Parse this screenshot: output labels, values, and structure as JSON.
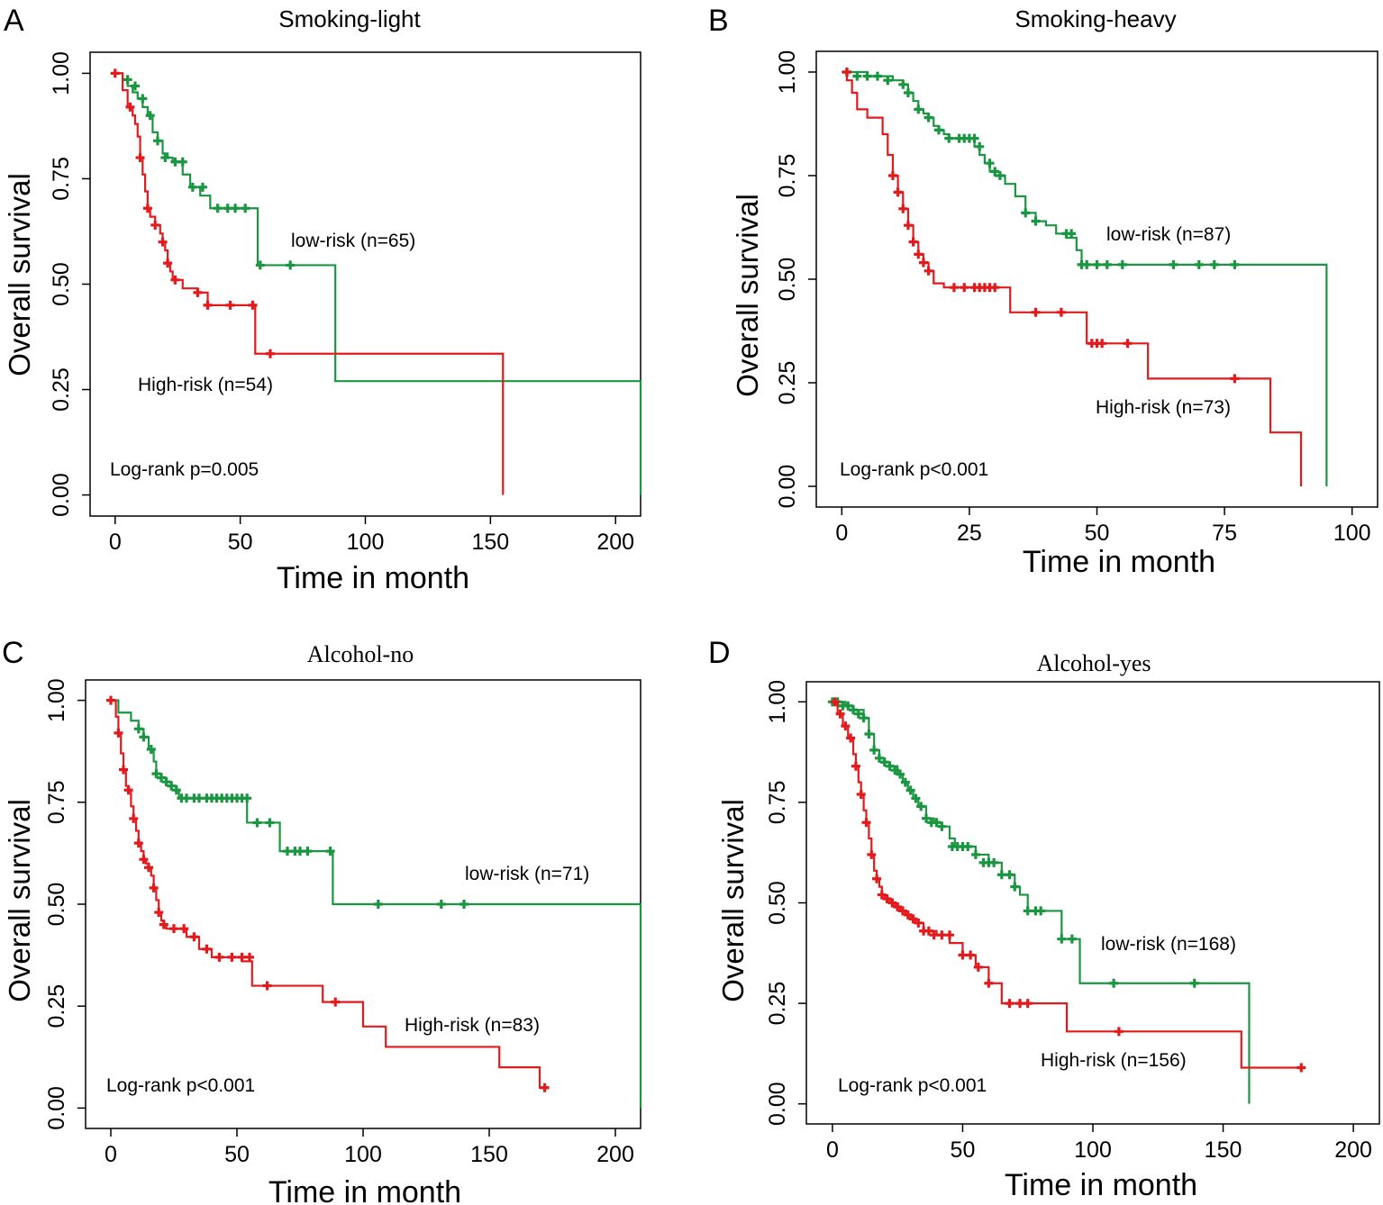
{
  "chart_data": [
    {
      "panel_letter": "A",
      "title": "Smoking-light",
      "type": "line",
      "xlabel": "Time in month",
      "ylabel": "Overall survival",
      "xlim": [
        -10,
        210
      ],
      "ylim": [
        -0.05,
        1.05
      ],
      "x_ticks": [
        "0",
        "50",
        "100",
        "150",
        "200"
      ],
      "x_tick_values": [
        0,
        50,
        100,
        150,
        200
      ],
      "y_ticks": [
        "0.00",
        "0.25",
        "0.50",
        "0.75",
        "1.00"
      ],
      "y_tick_values": [
        0,
        0.25,
        0.5,
        0.75,
        1.0
      ],
      "annotation": "Log-rank p=0.005",
      "series": [
        {
          "name": "low-risk",
          "label": "low-risk (n=65)",
          "color": "#1a9641",
          "x": [
            0,
            3,
            5,
            7,
            9,
            11,
            13,
            15,
            17,
            19,
            21,
            23,
            25,
            27,
            30,
            34,
            38,
            45,
            57,
            88,
            210,
            210
          ],
          "y": [
            1.0,
            0.985,
            0.97,
            0.955,
            0.94,
            0.92,
            0.9,
            0.86,
            0.84,
            0.81,
            0.8,
            0.79,
            0.79,
            0.76,
            0.73,
            0.71,
            0.68,
            0.68,
            0.545,
            0.27,
            0.27,
            0.0
          ],
          "censored_x": [
            5,
            8,
            11,
            14,
            17,
            20,
            24,
            27,
            31,
            35,
            41,
            45,
            48,
            52,
            58,
            70
          ],
          "censored_y": [
            0.985,
            0.97,
            0.94,
            0.9,
            0.84,
            0.8,
            0.79,
            0.79,
            0.73,
            0.73,
            0.68,
            0.68,
            0.68,
            0.68,
            0.545,
            0.545
          ]
        },
        {
          "name": "High-risk",
          "label": "High-risk (n=54)",
          "color": "#e31a1c",
          "x": [
            0,
            3,
            5,
            7,
            8,
            9,
            10,
            11,
            12,
            13,
            14,
            16,
            18,
            19,
            20,
            21,
            22,
            23,
            27,
            33,
            37,
            56,
            155,
            155
          ],
          "y": [
            1.0,
            0.96,
            0.92,
            0.9,
            0.88,
            0.85,
            0.8,
            0.76,
            0.72,
            0.68,
            0.66,
            0.64,
            0.62,
            0.6,
            0.58,
            0.55,
            0.53,
            0.51,
            0.49,
            0.48,
            0.45,
            0.335,
            0.335,
            0.0
          ],
          "censored_x": [
            0,
            6,
            10,
            13,
            16,
            19,
            21,
            24,
            33,
            37,
            46,
            55,
            62
          ],
          "censored_y": [
            1.0,
            0.92,
            0.8,
            0.68,
            0.64,
            0.6,
            0.55,
            0.51,
            0.48,
            0.45,
            0.45,
            0.45,
            0.335
          ]
        }
      ]
    },
    {
      "panel_letter": "B",
      "title": "Smoking-heavy",
      "type": "line",
      "xlabel": "Time in month",
      "ylabel": "Overall survival",
      "xlim": [
        -5,
        105
      ],
      "ylim": [
        -0.05,
        1.05
      ],
      "x_ticks": [
        "0",
        "25",
        "50",
        "75",
        "100"
      ],
      "x_tick_values": [
        0,
        25,
        50,
        75,
        100
      ],
      "y_ticks": [
        "0.00",
        "0.25",
        "0.50",
        "0.75",
        "1.00"
      ],
      "y_tick_values": [
        0,
        0.25,
        0.5,
        0.75,
        1.0
      ],
      "annotation": "Log-rank p<0.001",
      "series": [
        {
          "name": "low-risk",
          "label": "low-risk (n=87)",
          "color": "#1a9641",
          "x": [
            0,
            5,
            10,
            12,
            13,
            14,
            15,
            16,
            17,
            18,
            19,
            20,
            21,
            22,
            26,
            27,
            28,
            29,
            30,
            32,
            34,
            36,
            38,
            40,
            42,
            44,
            46,
            47,
            95,
            95
          ],
          "y": [
            1.0,
            0.99,
            0.98,
            0.97,
            0.95,
            0.93,
            0.91,
            0.9,
            0.89,
            0.87,
            0.86,
            0.85,
            0.84,
            0.84,
            0.82,
            0.8,
            0.78,
            0.76,
            0.75,
            0.73,
            0.7,
            0.66,
            0.64,
            0.63,
            0.61,
            0.6,
            0.57,
            0.535,
            0.535,
            0.0
          ],
          "censored_x": [
            1,
            3,
            5,
            7,
            9,
            12,
            13,
            15,
            17,
            19,
            21,
            23,
            24,
            25,
            26,
            27,
            29,
            30,
            31,
            36,
            38,
            44,
            45,
            47,
            48,
            50,
            52,
            55,
            65,
            70,
            73,
            77
          ],
          "censored_y": [
            1.0,
            0.99,
            0.99,
            0.99,
            0.98,
            0.97,
            0.95,
            0.91,
            0.89,
            0.86,
            0.84,
            0.84,
            0.84,
            0.84,
            0.84,
            0.82,
            0.78,
            0.76,
            0.75,
            0.66,
            0.64,
            0.61,
            0.61,
            0.535,
            0.535,
            0.535,
            0.535,
            0.535,
            0.535,
            0.535,
            0.535,
            0.535
          ]
        },
        {
          "name": "High-risk",
          "label": "High-risk (n=73)",
          "color": "#e31a1c",
          "x": [
            0,
            1,
            2,
            3,
            5,
            8,
            9,
            10,
            11,
            12,
            13,
            14,
            15,
            16,
            17,
            18,
            19,
            20,
            22,
            24,
            33,
            36,
            48,
            50,
            60,
            70,
            84,
            90,
            90
          ],
          "y": [
            1.0,
            0.98,
            0.95,
            0.91,
            0.89,
            0.85,
            0.8,
            0.75,
            0.71,
            0.67,
            0.63,
            0.59,
            0.56,
            0.54,
            0.52,
            0.49,
            0.49,
            0.48,
            0.48,
            0.48,
            0.42,
            0.42,
            0.345,
            0.345,
            0.26,
            0.26,
            0.13,
            0.13,
            0.0
          ],
          "censored_x": [
            1,
            10,
            11,
            12,
            13,
            14,
            15,
            16,
            17,
            22,
            24,
            26,
            27,
            28,
            29,
            30,
            38,
            43,
            49,
            50,
            51,
            56,
            77
          ],
          "censored_y": [
            1.0,
            0.75,
            0.71,
            0.67,
            0.63,
            0.59,
            0.56,
            0.54,
            0.52,
            0.48,
            0.48,
            0.48,
            0.48,
            0.48,
            0.48,
            0.48,
            0.42,
            0.42,
            0.345,
            0.345,
            0.345,
            0.345,
            0.26
          ]
        }
      ]
    },
    {
      "panel_letter": "C",
      "title": "Alcohol-no",
      "type": "line",
      "xlabel": "Time in month",
      "ylabel": "Overall survival",
      "xlim": [
        -10,
        210
      ],
      "ylim": [
        -0.05,
        1.05
      ],
      "x_ticks": [
        "0",
        "50",
        "100",
        "150",
        "200"
      ],
      "x_tick_values": [
        0,
        50,
        100,
        150,
        200
      ],
      "y_ticks": [
        "0.00",
        "0.25",
        "0.50",
        "0.75",
        "1.00"
      ],
      "y_tick_values": [
        0,
        0.25,
        0.5,
        0.75,
        1.0
      ],
      "annotation": "Log-rank p<0.001",
      "series": [
        {
          "name": "low-risk",
          "label": "low-risk (n=71)",
          "color": "#1a9641",
          "x": [
            0,
            3,
            8,
            11,
            13,
            15,
            17,
            18,
            20,
            22,
            24,
            26,
            27,
            54,
            67,
            69,
            88,
            90,
            210,
            210
          ],
          "y": [
            1.0,
            0.97,
            0.95,
            0.93,
            0.91,
            0.88,
            0.85,
            0.82,
            0.81,
            0.8,
            0.79,
            0.78,
            0.76,
            0.7,
            0.63,
            0.63,
            0.5,
            0.5,
            0.5,
            0.0
          ],
          "censored_x": [
            11,
            13,
            16,
            18,
            20,
            22,
            24,
            26,
            28,
            30,
            33,
            35,
            38,
            40,
            42,
            44,
            46,
            48,
            50,
            52,
            54,
            58,
            63,
            70,
            73,
            75,
            78,
            87,
            106,
            131,
            140
          ],
          "censored_y": [
            0.93,
            0.91,
            0.88,
            0.82,
            0.81,
            0.8,
            0.79,
            0.78,
            0.76,
            0.76,
            0.76,
            0.76,
            0.76,
            0.76,
            0.76,
            0.76,
            0.76,
            0.76,
            0.76,
            0.76,
            0.76,
            0.7,
            0.7,
            0.63,
            0.63,
            0.63,
            0.63,
            0.63,
            0.5,
            0.5,
            0.5
          ]
        },
        {
          "name": "High-risk",
          "label": "High-risk (n=83)",
          "color": "#e31a1c",
          "x": [
            0,
            2,
            3,
            4,
            5,
            6,
            7,
            8,
            9,
            10,
            11,
            12,
            13,
            14,
            15,
            16,
            17,
            18,
            19,
            20,
            21,
            22,
            25,
            30,
            35,
            40,
            52,
            56,
            62,
            84,
            100,
            109,
            154,
            170,
            172
          ],
          "y": [
            1.0,
            0.96,
            0.92,
            0.87,
            0.83,
            0.79,
            0.78,
            0.74,
            0.71,
            0.68,
            0.65,
            0.63,
            0.61,
            0.6,
            0.59,
            0.57,
            0.54,
            0.51,
            0.48,
            0.46,
            0.45,
            0.44,
            0.44,
            0.42,
            0.39,
            0.37,
            0.36,
            0.3,
            0.3,
            0.26,
            0.2,
            0.15,
            0.1,
            0.05,
            0.05
          ],
          "censored_x": [
            0,
            3,
            5,
            7,
            9,
            11,
            13,
            15,
            17,
            19,
            21,
            25,
            29,
            33,
            38,
            43,
            48,
            52,
            55,
            62,
            89,
            172
          ],
          "censored_y": [
            1.0,
            0.92,
            0.83,
            0.78,
            0.71,
            0.65,
            0.61,
            0.59,
            0.54,
            0.48,
            0.45,
            0.44,
            0.44,
            0.42,
            0.39,
            0.37,
            0.37,
            0.37,
            0.37,
            0.3,
            0.26,
            0.05
          ]
        }
      ]
    },
    {
      "panel_letter": "D",
      "title": "Alcohol-yes",
      "type": "line",
      "xlabel": "Time in month",
      "ylabel": "Overall survival",
      "xlim": [
        -10,
        210
      ],
      "ylim": [
        -0.05,
        1.05
      ],
      "x_ticks": [
        "0",
        "50",
        "100",
        "150",
        "200"
      ],
      "x_tick_values": [
        0,
        50,
        100,
        150,
        200
      ],
      "y_ticks": [
        "0.00",
        "0.25",
        "0.50",
        "0.75",
        "1.00"
      ],
      "y_tick_values": [
        0,
        0.25,
        0.5,
        0.75,
        1.0
      ],
      "annotation": "Log-rank p<0.001",
      "series": [
        {
          "name": "low-risk",
          "label": "low-risk (n=168)",
          "color": "#1a9641",
          "x": [
            0,
            5,
            8,
            12,
            14,
            16,
            18,
            20,
            22,
            25,
            27,
            29,
            31,
            33,
            36,
            39,
            42,
            45,
            47,
            50,
            55,
            60,
            65,
            70,
            72,
            75,
            80,
            88,
            95,
            100,
            108,
            139,
            160,
            160
          ],
          "y": [
            1.0,
            0.99,
            0.98,
            0.96,
            0.92,
            0.88,
            0.86,
            0.85,
            0.84,
            0.82,
            0.8,
            0.78,
            0.76,
            0.74,
            0.71,
            0.7,
            0.69,
            0.66,
            0.64,
            0.64,
            0.62,
            0.6,
            0.57,
            0.54,
            0.52,
            0.48,
            0.48,
            0.41,
            0.3,
            0.3,
            0.3,
            0.3,
            0.3,
            0.0
          ],
          "censored_x": [
            0,
            2,
            4,
            6,
            8,
            10,
            12,
            14,
            16,
            18,
            20,
            22,
            24,
            26,
            28,
            30,
            32,
            34,
            36,
            38,
            40,
            42,
            46,
            48,
            50,
            52,
            55,
            58,
            60,
            62,
            65,
            68,
            70,
            75,
            78,
            80,
            88,
            92,
            108,
            139
          ],
          "censored_y": [
            1.0,
            1.0,
            0.99,
            0.99,
            0.98,
            0.97,
            0.96,
            0.92,
            0.88,
            0.86,
            0.85,
            0.84,
            0.83,
            0.82,
            0.8,
            0.78,
            0.76,
            0.74,
            0.71,
            0.7,
            0.7,
            0.69,
            0.64,
            0.64,
            0.64,
            0.64,
            0.62,
            0.6,
            0.6,
            0.6,
            0.57,
            0.57,
            0.54,
            0.48,
            0.48,
            0.48,
            0.41,
            0.41,
            0.3,
            0.3
          ]
        },
        {
          "name": "High-risk",
          "label": "High-risk (n=156)",
          "color": "#e31a1c",
          "x": [
            0,
            2,
            4,
            6,
            8,
            9,
            10,
            11,
            12,
            13,
            14,
            15,
            16,
            17,
            18,
            19,
            20,
            22,
            24,
            26,
            28,
            30,
            32,
            35,
            40,
            45,
            50,
            55,
            60,
            65,
            90,
            110,
            157,
            180
          ],
          "y": [
            1.0,
            0.97,
            0.94,
            0.91,
            0.87,
            0.84,
            0.8,
            0.77,
            0.73,
            0.7,
            0.66,
            0.62,
            0.58,
            0.56,
            0.54,
            0.52,
            0.51,
            0.5,
            0.49,
            0.48,
            0.47,
            0.46,
            0.45,
            0.43,
            0.42,
            0.4,
            0.37,
            0.34,
            0.3,
            0.25,
            0.18,
            0.18,
            0.09,
            0.09
          ],
          "censored_x": [
            1,
            3,
            5,
            7,
            9,
            11,
            13,
            15,
            17,
            19,
            21,
            23,
            25,
            27,
            29,
            31,
            33,
            35,
            37,
            39,
            42,
            45,
            50,
            53,
            56,
            60,
            68,
            72,
            75,
            110,
            180
          ],
          "censored_y": [
            1.0,
            0.97,
            0.94,
            0.91,
            0.84,
            0.77,
            0.7,
            0.62,
            0.56,
            0.52,
            0.51,
            0.5,
            0.49,
            0.48,
            0.47,
            0.46,
            0.45,
            0.43,
            0.43,
            0.42,
            0.42,
            0.42,
            0.37,
            0.37,
            0.34,
            0.3,
            0.25,
            0.25,
            0.25,
            0.18,
            0.09
          ]
        }
      ]
    }
  ]
}
